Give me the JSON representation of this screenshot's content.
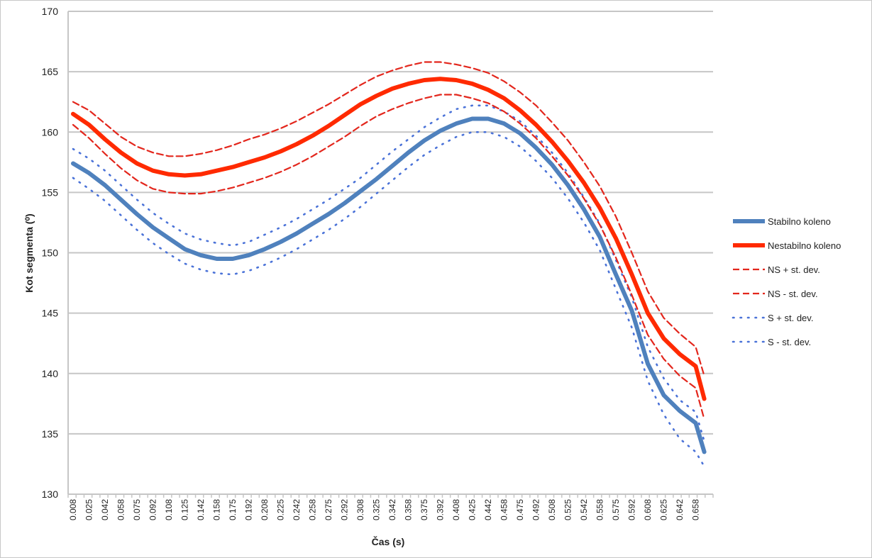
{
  "chart_data": {
    "type": "line",
    "title": "",
    "xlabel": "Čas (s)",
    "ylabel": "Kot segmenta (⁰)",
    "ylim": [
      130,
      170
    ],
    "yticks": [
      130,
      135,
      140,
      145,
      150,
      155,
      160,
      165,
      170
    ],
    "grid": true,
    "legend_position": "right",
    "x": [
      0.008,
      0.025,
      0.042,
      0.058,
      0.075,
      0.092,
      0.108,
      0.125,
      0.142,
      0.158,
      0.175,
      0.192,
      0.208,
      0.225,
      0.242,
      0.258,
      0.275,
      0.292,
      0.308,
      0.325,
      0.342,
      0.358,
      0.375,
      0.392,
      0.408,
      0.425,
      0.442,
      0.458,
      0.475,
      0.492,
      0.508,
      0.525,
      0.542,
      0.558,
      0.575,
      0.592,
      0.608,
      0.625,
      0.642,
      0.658,
      0.667
    ],
    "tick_labels": [
      "0.008",
      "0.025",
      "0.042",
      "0.058",
      "0.075",
      "0.092",
      "0.108",
      "0.125",
      "0.142",
      "0.158",
      "0.175",
      "0.192",
      "0.208",
      "0.225",
      "0.242",
      "0.258",
      "0.275",
      "0.292",
      "0.308",
      "0.325",
      "0.342",
      "0.358",
      "0.375",
      "0.392",
      "0.408",
      "0.425",
      "0.442",
      "0.458",
      "0.475",
      "0.492",
      "0.508",
      "0.525",
      "0.542",
      "0.558",
      "0.575",
      "0.592",
      "0.608",
      "0.625",
      "0.642",
      "0.658"
    ],
    "series": [
      {
        "name": "Stabilno koleno",
        "color": "#4f81bd",
        "style": "solid-thick",
        "values": [
          157.4,
          156.6,
          155.6,
          154.4,
          153.2,
          152.1,
          151.2,
          150.3,
          149.8,
          149.5,
          149.5,
          149.8,
          150.3,
          150.9,
          151.6,
          152.4,
          153.2,
          154.1,
          155.1,
          156.1,
          157.2,
          158.3,
          159.3,
          160.1,
          160.7,
          161.1,
          161.1,
          160.7,
          159.9,
          158.7,
          157.3,
          155.6,
          153.6,
          151.3,
          148.2,
          145.2,
          140.8,
          138.2,
          136.9,
          135.9,
          133.5
        ]
      },
      {
        "name": "Nestabilno koleno",
        "color": "#ff2a00",
        "style": "solid-thick",
        "values": [
          161.5,
          160.6,
          159.4,
          158.3,
          157.4,
          156.8,
          156.5,
          156.4,
          156.5,
          156.8,
          157.1,
          157.5,
          157.9,
          158.4,
          159.0,
          159.7,
          160.5,
          161.4,
          162.3,
          163.0,
          163.6,
          164.0,
          164.3,
          164.4,
          164.3,
          164.0,
          163.5,
          162.8,
          161.8,
          160.6,
          159.2,
          157.6,
          155.8,
          153.7,
          151.2,
          148.2,
          145.0,
          142.9,
          141.6,
          140.6,
          137.9
        ]
      },
      {
        "name": "NS + st. dev.",
        "color": "#e3261c",
        "style": "dashed",
        "values": [
          162.5,
          161.8,
          160.7,
          159.6,
          158.8,
          158.3,
          158.0,
          158.0,
          158.2,
          158.5,
          158.9,
          159.4,
          159.8,
          160.3,
          160.9,
          161.6,
          162.3,
          163.1,
          163.9,
          164.6,
          165.1,
          165.5,
          165.8,
          165.8,
          165.6,
          165.3,
          164.9,
          164.2,
          163.3,
          162.2,
          160.8,
          159.3,
          157.5,
          155.5,
          153.0,
          150.0,
          146.8,
          144.6,
          143.3,
          142.2,
          139.8
        ]
      },
      {
        "name": "NS - st. dev.",
        "color": "#e3261c",
        "style": "dashed",
        "values": [
          160.6,
          159.5,
          158.2,
          157.0,
          156.0,
          155.3,
          155.0,
          154.9,
          154.9,
          155.1,
          155.4,
          155.8,
          156.2,
          156.7,
          157.3,
          158.0,
          158.8,
          159.6,
          160.5,
          161.3,
          161.9,
          162.4,
          162.8,
          163.1,
          163.1,
          162.8,
          162.4,
          161.7,
          160.7,
          159.5,
          158.0,
          156.4,
          154.5,
          152.3,
          149.6,
          146.5,
          143.2,
          141.2,
          139.8,
          138.8,
          136.2
        ]
      },
      {
        "name": "S + st. dev.",
        "color": "#4a72d8",
        "style": "dotted",
        "values": [
          158.6,
          157.8,
          156.8,
          155.6,
          154.4,
          153.3,
          152.4,
          151.6,
          151.1,
          150.8,
          150.6,
          150.9,
          151.5,
          152.1,
          152.8,
          153.6,
          154.4,
          155.3,
          156.2,
          157.3,
          158.4,
          159.4,
          160.4,
          161.2,
          161.9,
          162.2,
          162.2,
          161.7,
          160.9,
          159.7,
          158.3,
          156.6,
          154.6,
          152.4,
          149.4,
          146.3,
          142.2,
          139.6,
          137.8,
          136.8,
          134.4
        ]
      },
      {
        "name": "S - st. dev.",
        "color": "#4a72d8",
        "style": "dotted",
        "values": [
          156.2,
          155.3,
          154.3,
          153.1,
          151.9,
          150.8,
          149.9,
          149.1,
          148.6,
          148.3,
          148.2,
          148.5,
          149.0,
          149.6,
          150.3,
          151.1,
          151.9,
          152.8,
          153.8,
          154.9,
          156.0,
          157.1,
          158.1,
          158.9,
          159.6,
          160.0,
          160.0,
          159.6,
          158.8,
          157.6,
          156.2,
          154.5,
          152.5,
          150.2,
          147.0,
          143.8,
          139.4,
          136.6,
          134.6,
          133.5,
          132.3
        ]
      }
    ]
  }
}
